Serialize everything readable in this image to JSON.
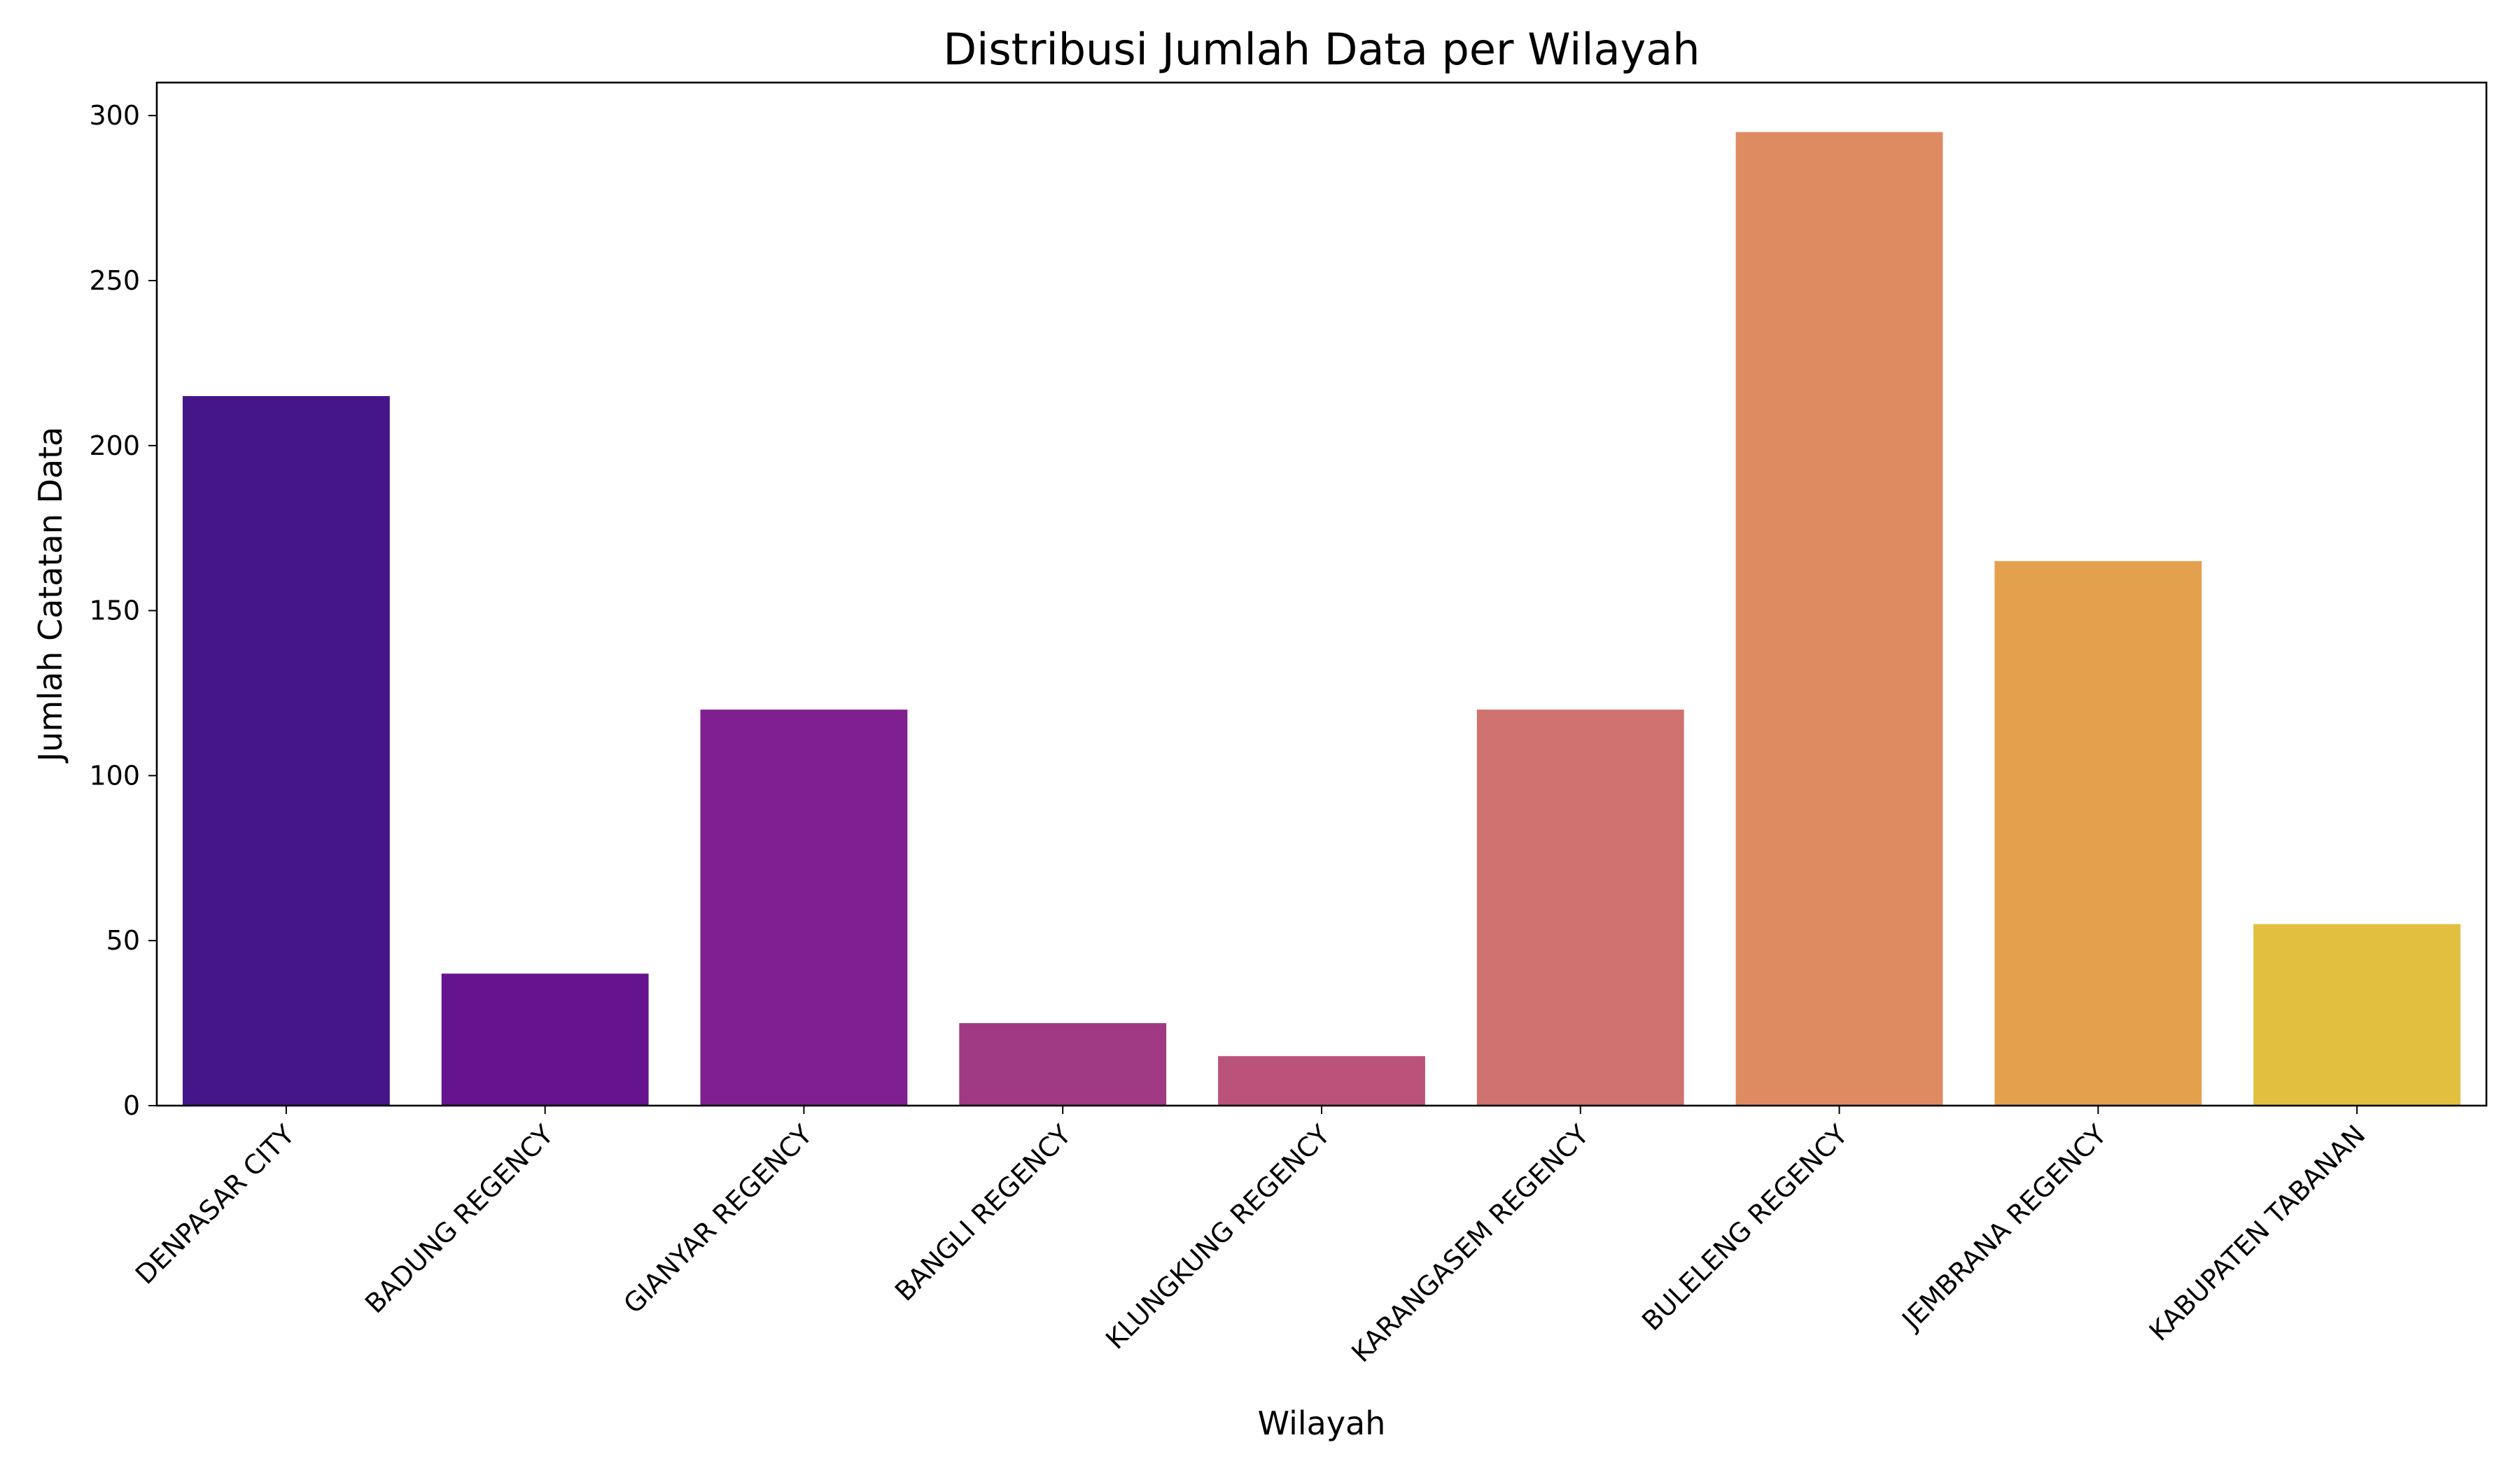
{
  "chart_data": {
    "type": "bar",
    "title": "Distribusi Jumlah Data per Wilayah",
    "xlabel": "Wilayah",
    "ylabel": "Jumlah Catatan Data",
    "categories": [
      "DENPASAR CITY",
      "BADUNG REGENCY",
      "GIANYAR REGENCY",
      "BANGLI REGENCY",
      "KLUNGKUNG REGENCY",
      "KARANGASEM REGENCY",
      "BULELENG REGENCY",
      "JEMBRANA REGENCY",
      "KABUPATEN TABANAN"
    ],
    "values": [
      215,
      40,
      120,
      25,
      15,
      120,
      295,
      165,
      55
    ],
    "colors": [
      "#45168a",
      "#65138f",
      "#801f90",
      "#a03a84",
      "#bb5279",
      "#d07270",
      "#de8b62",
      "#e4a14d",
      "#e2bf3f"
    ],
    "ylim": [
      0,
      310
    ],
    "yticks": [
      0,
      50,
      100,
      150,
      200,
      250,
      300
    ],
    "grid": false,
    "legend": "none"
  }
}
